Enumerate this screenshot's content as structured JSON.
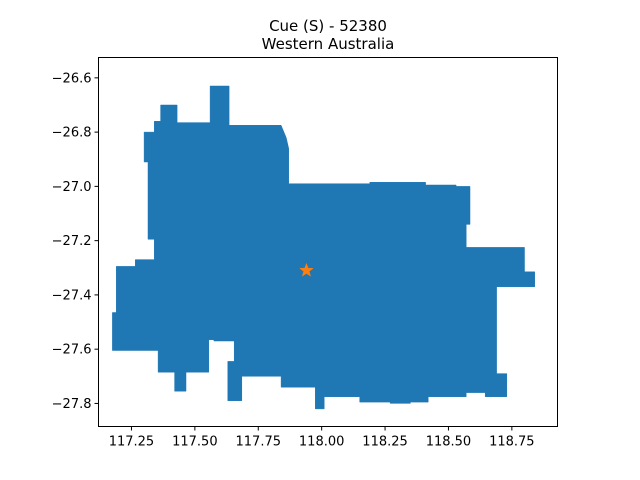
{
  "title": {
    "line1": "Cue (S) - 52380",
    "line2": "Western Australia"
  },
  "colors": {
    "region_fill": "#1f77b4",
    "marker": "#ff7f0e",
    "axes": "#000000",
    "background": "#ffffff"
  },
  "map": {
    "x_range": [
      117.12,
      118.93
    ],
    "y_range": [
      -27.885,
      -26.525
    ],
    "x_ticks": [
      {
        "value": 117.25,
        "label": "117.25"
      },
      {
        "value": 117.5,
        "label": "117.50"
      },
      {
        "value": 117.75,
        "label": "117.75"
      },
      {
        "value": 118.0,
        "label": "118.00"
      },
      {
        "value": 118.25,
        "label": "118.25"
      },
      {
        "value": 118.5,
        "label": "118.50"
      },
      {
        "value": 118.75,
        "label": "118.75"
      }
    ],
    "y_ticks": [
      {
        "value": -26.6,
        "label": "−26.6"
      },
      {
        "value": -26.8,
        "label": "−26.8"
      },
      {
        "value": -27.0,
        "label": "−27.0"
      },
      {
        "value": -27.2,
        "label": "−27.2"
      },
      {
        "value": -27.4,
        "label": "−27.4"
      },
      {
        "value": -27.6,
        "label": "−27.6"
      },
      {
        "value": -27.8,
        "label": "−27.8"
      }
    ],
    "marker": {
      "lon": 117.94,
      "lat": -27.31,
      "shape": "star"
    },
    "boundary": [
      [
        117.56,
        -26.63
      ],
      [
        117.635,
        -26.63
      ],
      [
        117.635,
        -26.775
      ],
      [
        117.84,
        -26.775
      ],
      [
        117.86,
        -26.82
      ],
      [
        117.87,
        -26.86
      ],
      [
        117.87,
        -26.99
      ],
      [
        118.19,
        -26.99
      ],
      [
        118.19,
        -26.985
      ],
      [
        118.41,
        -26.985
      ],
      [
        118.41,
        -26.995
      ],
      [
        118.53,
        -26.995
      ],
      [
        118.53,
        -27.0
      ],
      [
        118.585,
        -27.0
      ],
      [
        118.585,
        -27.14
      ],
      [
        118.57,
        -27.14
      ],
      [
        118.57,
        -27.225
      ],
      [
        118.8,
        -27.225
      ],
      [
        118.8,
        -27.315
      ],
      [
        118.84,
        -27.315
      ],
      [
        118.84,
        -27.37
      ],
      [
        118.69,
        -27.37
      ],
      [
        118.69,
        -27.69
      ],
      [
        118.73,
        -27.69
      ],
      [
        118.73,
        -27.775
      ],
      [
        118.645,
        -27.775
      ],
      [
        118.645,
        -27.76
      ],
      [
        118.57,
        -27.76
      ],
      [
        118.57,
        -27.775
      ],
      [
        118.42,
        -27.775
      ],
      [
        118.42,
        -27.795
      ],
      [
        118.35,
        -27.795
      ],
      [
        118.35,
        -27.8
      ],
      [
        118.27,
        -27.8
      ],
      [
        118.27,
        -27.795
      ],
      [
        118.15,
        -27.795
      ],
      [
        118.15,
        -27.775
      ],
      [
        118.01,
        -27.775
      ],
      [
        118.01,
        -27.82
      ],
      [
        117.975,
        -27.82
      ],
      [
        117.975,
        -27.74
      ],
      [
        117.84,
        -27.74
      ],
      [
        117.84,
        -27.7
      ],
      [
        117.685,
        -27.7
      ],
      [
        117.685,
        -27.79
      ],
      [
        117.63,
        -27.79
      ],
      [
        117.63,
        -27.645
      ],
      [
        117.655,
        -27.645
      ],
      [
        117.655,
        -27.57
      ],
      [
        117.575,
        -27.57
      ],
      [
        117.575,
        -27.565
      ],
      [
        117.555,
        -27.565
      ],
      [
        117.555,
        -27.685
      ],
      [
        117.465,
        -27.685
      ],
      [
        117.465,
        -27.755
      ],
      [
        117.42,
        -27.755
      ],
      [
        117.42,
        -27.685
      ],
      [
        117.355,
        -27.685
      ],
      [
        117.355,
        -27.605
      ],
      [
        117.175,
        -27.605
      ],
      [
        117.175,
        -27.465
      ],
      [
        117.19,
        -27.465
      ],
      [
        117.19,
        -27.295
      ],
      [
        117.265,
        -27.295
      ],
      [
        117.265,
        -27.27
      ],
      [
        117.34,
        -27.27
      ],
      [
        117.34,
        -27.195
      ],
      [
        117.315,
        -27.195
      ],
      [
        117.315,
        -26.91
      ],
      [
        117.3,
        -26.91
      ],
      [
        117.3,
        -26.8
      ],
      [
        117.34,
        -26.8
      ],
      [
        117.34,
        -26.76
      ],
      [
        117.365,
        -26.76
      ],
      [
        117.365,
        -26.7
      ],
      [
        117.43,
        -26.7
      ],
      [
        117.43,
        -26.765
      ],
      [
        117.56,
        -26.765
      ]
    ]
  }
}
